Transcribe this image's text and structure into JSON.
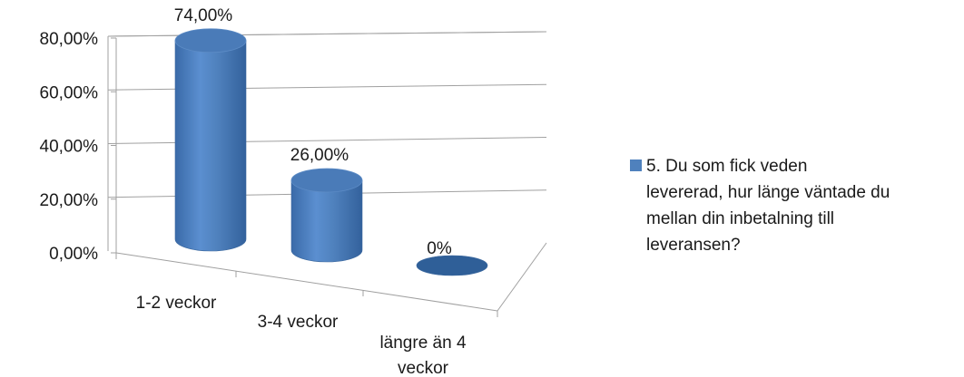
{
  "chart_data": {
    "type": "bar",
    "style": "3d-cylinder",
    "categories": [
      "1-2 veckor",
      "3-4 veckor",
      "längre än 4 veckor"
    ],
    "category_lines": [
      [
        "1-2 veckor"
      ],
      [
        "3-4 veckor"
      ],
      [
        "längre än 4",
        "veckor"
      ]
    ],
    "series": [
      {
        "name": "5. Du som fick veden levererad, hur länge väntade du mellan din inbetalning till leveransen?",
        "name_lines": [
          "5. Du som fick veden",
          "levererad, hur länge väntade du",
          "mellan din inbetalning till",
          "leveransen?"
        ],
        "values": [
          74,
          26,
          0
        ],
        "data_labels": [
          "74,00%",
          "26,00%",
          "0%"
        ],
        "color": "#4f81bd"
      }
    ],
    "y_ticks": [
      0,
      20,
      40,
      60,
      80
    ],
    "y_tick_labels": [
      "0,00%",
      "20,00%",
      "40,00%",
      "60,00%",
      "80,00%"
    ],
    "ylim": [
      0,
      80
    ],
    "grid": true,
    "legend_position": "right",
    "title": "",
    "xlabel": "",
    "ylabel": ""
  }
}
